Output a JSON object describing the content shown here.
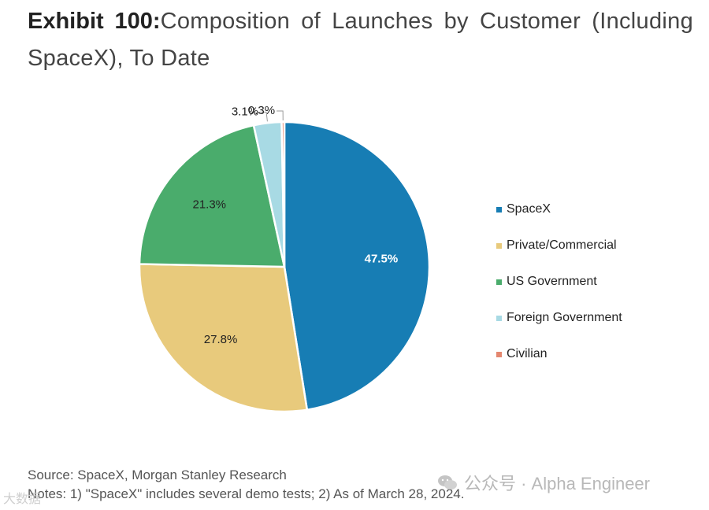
{
  "title": {
    "exhibit": "Exhibit 100:",
    "text": "Composition of Launches by Customer (Including SpaceX), To Date"
  },
  "chart_data": {
    "type": "pie",
    "title": "Composition of Launches by Customer (Including SpaceX), To Date",
    "slices": [
      {
        "name": "SpaceX",
        "value": 47.5,
        "label": "47.5%",
        "color": "#177db4",
        "label_color": "#ffffff"
      },
      {
        "name": "Private/Commercial",
        "value": 27.8,
        "label": "27.8%",
        "color": "#e8ca7c",
        "label_color": "#222222"
      },
      {
        "name": "US Government",
        "value": 21.3,
        "label": "21.3%",
        "color": "#4aac6c",
        "label_color": "#222222"
      },
      {
        "name": "Foreign Government",
        "value": 3.1,
        "label": "3.1%",
        "color": "#a8dae4",
        "label_color": "#222222"
      },
      {
        "name": "Civilian",
        "value": 0.3,
        "label": "0.3%",
        "color": "#e4876f",
        "label_color": "#222222"
      }
    ],
    "start": "top",
    "direction": "clockwise",
    "legend_position": "right"
  },
  "footer": {
    "source": "Source: SpaceX, Morgan Stanley Research",
    "notes": "Notes: 1) \"SpaceX\" includes several demo tests; 2) As of March 28, 2024."
  },
  "watermark": {
    "text": "公众号 · Alpha Engineer",
    "corner": "大数据"
  }
}
